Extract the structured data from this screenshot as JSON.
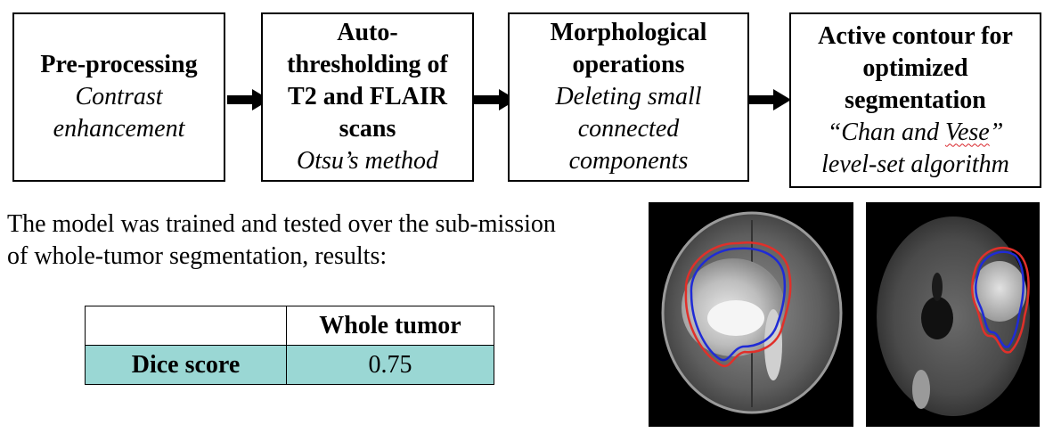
{
  "pipeline": [
    {
      "title_lines": [
        "Pre-processing"
      ],
      "desc_lines": [
        "Contrast",
        "enhancement"
      ]
    },
    {
      "title_lines": [
        "Auto-",
        "thresholding of",
        "T2 and FLAIR",
        "scans"
      ],
      "desc_lines": [
        "Otsu’s method"
      ]
    },
    {
      "title_lines": [
        "Morphological",
        "operations"
      ],
      "desc_lines": [
        "Deleting small",
        "connected",
        "components"
      ]
    },
    {
      "title_lines": [
        "Active contour for",
        "optimized",
        "segmentation"
      ],
      "desc_lines": [
        "“Chan and ",
        "Vese",
        "”",
        "level-set algorithm"
      ]
    }
  ],
  "note": {
    "line1": "The model was trained and tested over the sub-mission",
    "line2": "of whole-tumor segmentation, results:"
  },
  "results_table": {
    "header": [
      "",
      "Whole tumor"
    ],
    "rows": [
      {
        "label": "Dice score",
        "value": "0.75"
      }
    ]
  },
  "colors": {
    "contour_red": "#e0302a",
    "contour_blue": "#1f2bd6",
    "table_highlight": "#9ad7d4"
  },
  "images": [
    {
      "name": "axial-mri-scan-left",
      "contours": [
        "red",
        "blue"
      ]
    },
    {
      "name": "axial-mri-scan-right",
      "contours": [
        "red",
        "blue"
      ]
    }
  ]
}
